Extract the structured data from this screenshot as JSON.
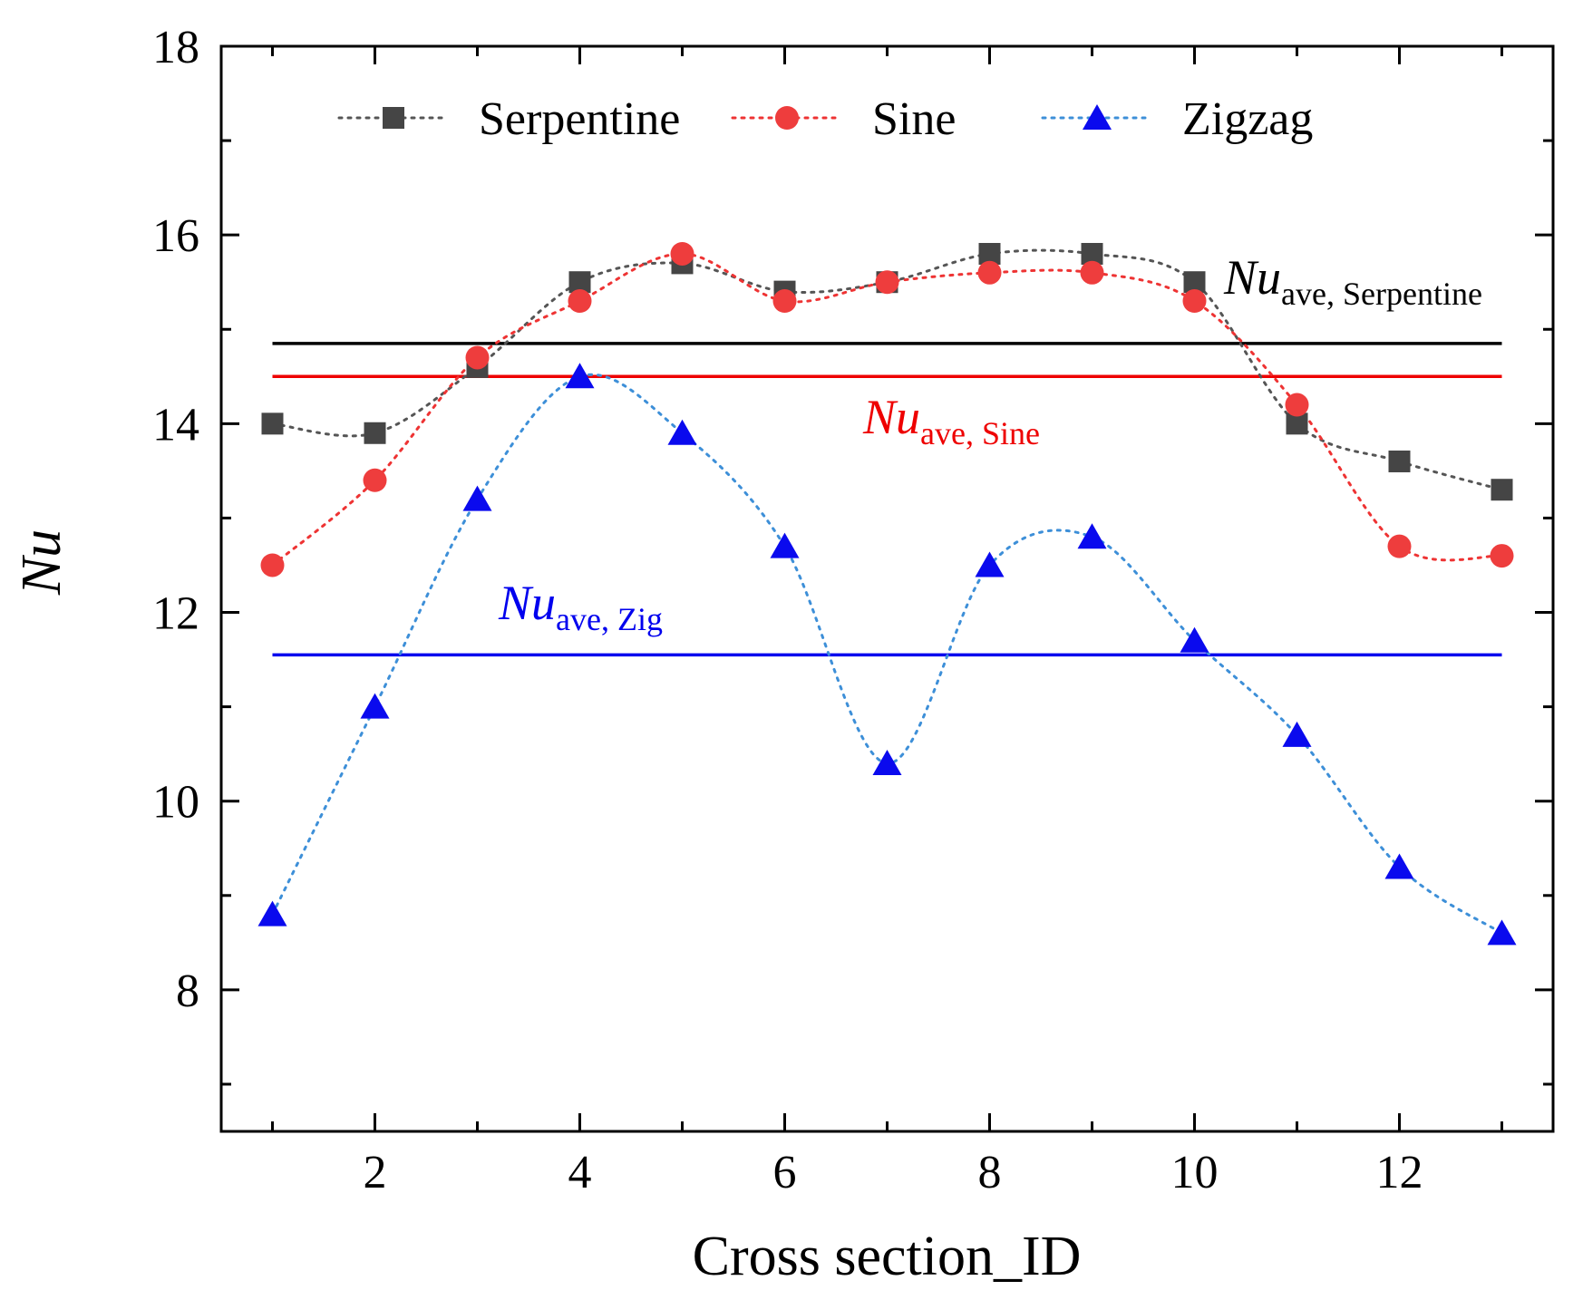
{
  "chart_data": {
    "type": "line",
    "title": "",
    "xlabel": "Cross section_ID",
    "ylabel": "Nu",
    "xlim": [
      0.5,
      13.5
    ],
    "ylim": [
      6.5,
      18
    ],
    "xticks": [
      2,
      4,
      6,
      8,
      10,
      12
    ],
    "yticks": [
      8,
      10,
      12,
      14,
      16,
      18
    ],
    "grid": false,
    "legend_position": "top",
    "x": [
      1,
      2,
      3,
      4,
      5,
      6,
      7,
      8,
      9,
      10,
      11,
      12,
      13
    ],
    "series": [
      {
        "name": "Serpentine",
        "marker": "square",
        "color": "#454545",
        "line_color": "#555555",
        "values": [
          14.0,
          13.9,
          14.6,
          15.5,
          15.7,
          15.4,
          15.5,
          15.8,
          15.8,
          15.5,
          14.0,
          13.6,
          13.3
        ]
      },
      {
        "name": "Sine",
        "marker": "circle",
        "color": "#ee3d3d",
        "line_color": "#ee3333",
        "values": [
          12.5,
          13.4,
          14.7,
          15.3,
          15.8,
          15.3,
          15.5,
          15.6,
          15.6,
          15.3,
          14.2,
          12.7,
          12.6
        ]
      },
      {
        "name": "Zigzag",
        "marker": "triangle",
        "color": "#0a0aee",
        "line_color": "#3d8fd8",
        "values": [
          8.8,
          11.0,
          13.2,
          14.5,
          13.9,
          12.7,
          10.4,
          12.5,
          12.8,
          11.7,
          10.7,
          9.3,
          8.6
        ]
      }
    ],
    "reference_lines": [
      {
        "name": "Nu ave, Serpentine",
        "value": 14.85,
        "color": "#000000",
        "label_main": "Nu",
        "label_sub": "ave, Serpentine"
      },
      {
        "name": "Nu ave, Sine",
        "value": 14.5,
        "color": "#ee0000",
        "label_main": "Nu",
        "label_sub": "ave, Sine"
      },
      {
        "name": "Nu ave, Zig",
        "value": 11.55,
        "color": "#0000ee",
        "label_main": "Nu",
        "label_sub": "ave, Zig"
      }
    ]
  }
}
